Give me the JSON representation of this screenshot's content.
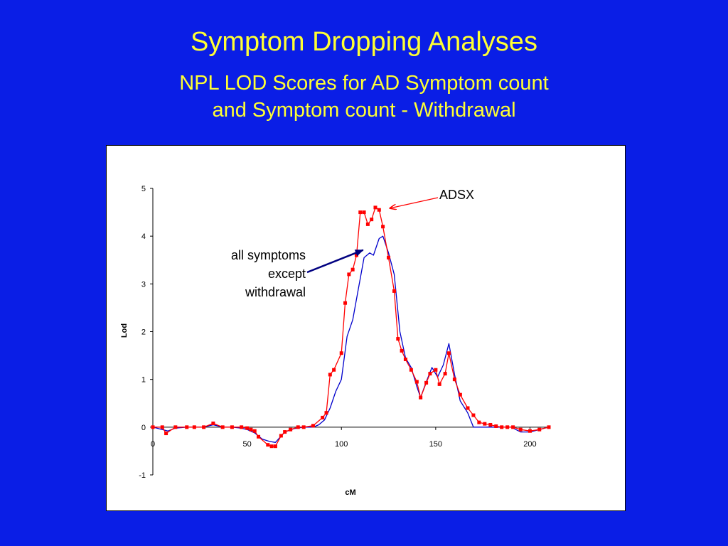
{
  "slide": {
    "title": "Symptom Dropping Analyses",
    "subtitle_line1": "NPL LOD Scores for AD Symptom count",
    "subtitle_line2": "and Symptom count - Withdrawal"
  },
  "chart_data": {
    "type": "line",
    "xlabel": "cM",
    "ylabel": "Lod",
    "xlim": [
      0,
      210
    ],
    "ylim": [
      -1,
      5
    ],
    "xticks": [
      0,
      50,
      100,
      150,
      200
    ],
    "yticks": [
      -1,
      0,
      1,
      2,
      3,
      4,
      5
    ],
    "grid": false,
    "annotations": [
      {
        "text": "ADSX",
        "target_x": 125,
        "target_y": 4.6,
        "color": "#ff0000"
      },
      {
        "lines": [
          "all symptoms",
          "except",
          "withdrawal"
        ],
        "target_x": 110,
        "target_y": 3.65,
        "color": "#000080"
      }
    ],
    "series": [
      {
        "color": "#ff0000",
        "markers": true,
        "x": [
          0,
          5,
          7,
          12,
          18,
          22,
          27,
          32,
          37,
          42,
          47,
          50,
          52,
          54,
          56,
          61,
          63,
          65,
          68,
          70,
          73,
          77,
          80,
          85,
          90,
          92,
          94,
          96,
          100,
          102,
          104,
          106,
          108,
          110,
          112,
          114,
          116,
          118,
          120,
          122,
          125,
          128,
          130,
          132,
          134,
          137,
          140,
          142,
          145,
          147,
          150,
          152,
          155,
          157,
          160,
          163,
          167,
          170,
          173,
          176,
          179,
          182,
          185,
          188,
          191,
          195,
          200,
          205,
          210
        ],
        "y": [
          0.0,
          0.0,
          -0.13,
          0.0,
          0.0,
          0.0,
          0.0,
          0.08,
          0.0,
          0.0,
          0.0,
          -0.02,
          -0.05,
          -0.08,
          -0.2,
          -0.37,
          -0.4,
          -0.4,
          -0.18,
          -0.1,
          -0.05,
          0.0,
          0.0,
          0.03,
          0.2,
          0.3,
          1.1,
          1.2,
          1.55,
          2.6,
          3.2,
          3.3,
          3.6,
          4.5,
          4.5,
          4.25,
          4.35,
          4.6,
          4.55,
          4.2,
          3.55,
          2.85,
          1.85,
          1.6,
          1.42,
          1.2,
          0.95,
          0.62,
          0.93,
          1.12,
          1.2,
          0.9,
          1.12,
          1.55,
          1.0,
          0.68,
          0.4,
          0.25,
          0.1,
          0.07,
          0.05,
          0.02,
          0.0,
          0.0,
          0.0,
          -0.05,
          -0.08,
          -0.05,
          0.0
        ]
      },
      {
        "color": "#0000cc",
        "markers": false,
        "x": [
          0,
          5,
          8,
          12,
          18,
          22,
          27,
          32,
          37,
          42,
          47,
          50,
          54,
          58,
          62,
          65,
          70,
          75,
          80,
          85,
          88,
          91,
          94,
          97,
          100,
          103,
          106,
          109,
          112,
          115,
          117,
          120,
          122,
          125,
          128,
          131,
          134,
          137,
          140,
          142,
          145,
          148,
          151,
          154,
          157,
          160,
          163,
          167,
          170,
          175,
          180,
          185,
          190,
          195,
          200,
          205,
          210
        ],
        "y": [
          0.0,
          -0.05,
          -0.08,
          -0.02,
          0.0,
          0.0,
          0.0,
          0.05,
          0.0,
          0.0,
          -0.02,
          -0.05,
          -0.12,
          -0.25,
          -0.3,
          -0.32,
          -0.1,
          -0.03,
          0.0,
          0.0,
          0.05,
          0.15,
          0.4,
          0.75,
          1.0,
          1.9,
          2.25,
          2.9,
          3.55,
          3.65,
          3.6,
          3.95,
          4.0,
          3.65,
          3.2,
          2.0,
          1.45,
          1.25,
          0.85,
          0.62,
          0.95,
          1.25,
          1.05,
          1.3,
          1.75,
          1.1,
          0.55,
          0.3,
          0.0,
          0.0,
          0.0,
          0.0,
          0.0,
          -0.1,
          -0.1,
          -0.05,
          0.0
        ]
      }
    ]
  }
}
